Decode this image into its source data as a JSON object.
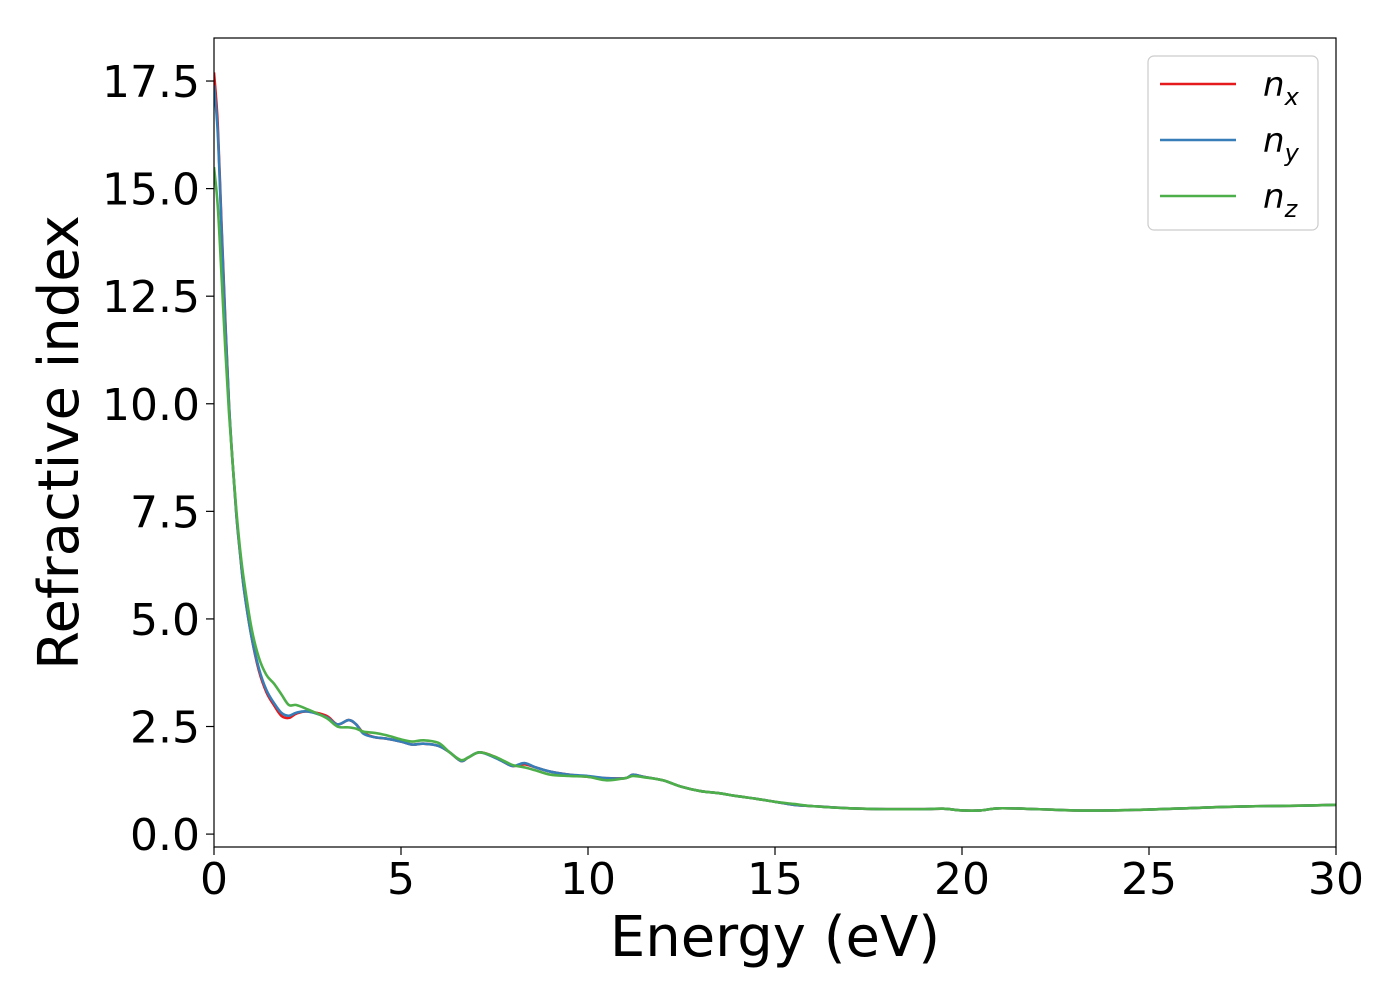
{
  "chart_data": {
    "type": "line",
    "title": "",
    "xlabel": "Energy (eV)",
    "ylabel": "Refractive index",
    "xlim": [
      0,
      30
    ],
    "ylim": [
      -0.3,
      18.5
    ],
    "xticks": [
      0,
      5,
      10,
      15,
      20,
      25,
      30
    ],
    "xtick_labels": [
      "0",
      "5",
      "10",
      "15",
      "20",
      "25",
      "30"
    ],
    "yticks": [
      0.0,
      2.5,
      5.0,
      7.5,
      10.0,
      12.5,
      15.0,
      17.5
    ],
    "ytick_labels": [
      "0.0",
      "2.5",
      "5.0",
      "7.5",
      "10.0",
      "12.5",
      "15.0",
      "17.5"
    ],
    "grid": false,
    "legend_position": "top-right",
    "series": [
      {
        "name": "n_x",
        "legend_base": "n",
        "legend_sub": "x",
        "color": "#e41a1c",
        "x": [
          0.0,
          0.1,
          0.2,
          0.3,
          0.4,
          0.5,
          0.6,
          0.7,
          0.8,
          1.0,
          1.2,
          1.4,
          1.6,
          1.8,
          2.0,
          2.2,
          2.5,
          3.0,
          3.3,
          3.6,
          3.8,
          4.0,
          4.3,
          4.6,
          5.0,
          5.3,
          5.6,
          6.0,
          6.3,
          6.6,
          6.8,
          7.1,
          7.5,
          7.8,
          8.0,
          8.3,
          8.6,
          9.0,
          9.5,
          10.0,
          10.5,
          11.0,
          11.2,
          11.5,
          12.0,
          12.5,
          13.0,
          13.5,
          14.0,
          14.5,
          15.0,
          15.5,
          16.0,
          17.0,
          18.0,
          19.0,
          19.5,
          20.0,
          20.5,
          21.0,
          22.0,
          23.0,
          24.0,
          24.5,
          25.0,
          26.0,
          27.0,
          28.0,
          29.0,
          30.0
        ],
        "y": [
          17.7,
          16.5,
          14.2,
          12.0,
          10.0,
          8.6,
          7.4,
          6.5,
          5.7,
          4.6,
          3.8,
          3.3,
          3.0,
          2.75,
          2.7,
          2.8,
          2.85,
          2.75,
          2.55,
          2.65,
          2.55,
          2.35,
          2.25,
          2.22,
          2.15,
          2.08,
          2.1,
          2.05,
          1.9,
          1.7,
          1.78,
          1.9,
          1.8,
          1.65,
          1.58,
          1.62,
          1.55,
          1.45,
          1.38,
          1.33,
          1.3,
          1.3,
          1.38,
          1.33,
          1.25,
          1.1,
          1.0,
          0.95,
          0.88,
          0.82,
          0.75,
          0.68,
          0.65,
          0.6,
          0.58,
          0.58,
          0.59,
          0.55,
          0.55,
          0.6,
          0.58,
          0.55,
          0.55,
          0.56,
          0.57,
          0.6,
          0.63,
          0.65,
          0.66,
          0.68
        ]
      },
      {
        "name": "n_y",
        "legend_base": "n",
        "legend_sub": "y",
        "color": "#377eb8",
        "x": [
          0.0,
          0.1,
          0.2,
          0.3,
          0.4,
          0.5,
          0.6,
          0.7,
          0.8,
          1.0,
          1.2,
          1.4,
          1.6,
          1.8,
          2.0,
          2.2,
          2.5,
          3.0,
          3.3,
          3.6,
          3.8,
          4.0,
          4.3,
          4.6,
          5.0,
          5.3,
          5.6,
          6.0,
          6.3,
          6.6,
          6.8,
          7.1,
          7.5,
          7.8,
          8.0,
          8.3,
          8.6,
          9.0,
          9.5,
          10.0,
          10.5,
          11.0,
          11.2,
          11.5,
          12.0,
          12.5,
          13.0,
          13.5,
          14.0,
          14.5,
          15.0,
          15.5,
          16.0,
          17.0,
          18.0,
          19.0,
          19.5,
          20.0,
          20.5,
          21.0,
          22.0,
          23.0,
          24.0,
          24.5,
          25.0,
          26.0,
          27.0,
          28.0,
          29.0,
          30.0
        ],
        "y": [
          17.4,
          16.3,
          14.1,
          11.9,
          10.0,
          8.6,
          7.4,
          6.5,
          5.7,
          4.6,
          3.85,
          3.35,
          3.05,
          2.82,
          2.75,
          2.82,
          2.85,
          2.72,
          2.55,
          2.65,
          2.55,
          2.33,
          2.25,
          2.22,
          2.15,
          2.08,
          2.1,
          2.05,
          1.9,
          1.7,
          1.78,
          1.9,
          1.78,
          1.65,
          1.58,
          1.65,
          1.55,
          1.45,
          1.38,
          1.35,
          1.3,
          1.3,
          1.38,
          1.33,
          1.25,
          1.1,
          1.0,
          0.95,
          0.88,
          0.82,
          0.75,
          0.68,
          0.65,
          0.6,
          0.58,
          0.58,
          0.59,
          0.55,
          0.55,
          0.6,
          0.58,
          0.55,
          0.55,
          0.56,
          0.57,
          0.6,
          0.63,
          0.65,
          0.66,
          0.68
        ]
      },
      {
        "name": "n_z",
        "legend_base": "n",
        "legend_sub": "z",
        "color": "#4daf4a",
        "x": [
          0.0,
          0.1,
          0.2,
          0.3,
          0.4,
          0.5,
          0.6,
          0.7,
          0.8,
          1.0,
          1.2,
          1.4,
          1.6,
          1.8,
          2.0,
          2.2,
          2.5,
          3.0,
          3.3,
          3.6,
          3.8,
          4.0,
          4.3,
          4.6,
          5.0,
          5.3,
          5.6,
          6.0,
          6.3,
          6.6,
          6.8,
          7.1,
          7.5,
          7.8,
          8.0,
          8.3,
          8.6,
          9.0,
          9.5,
          10.0,
          10.5,
          11.0,
          11.2,
          11.5,
          12.0,
          12.5,
          13.0,
          13.5,
          14.0,
          14.5,
          15.0,
          15.5,
          16.0,
          17.0,
          18.0,
          19.0,
          19.5,
          20.0,
          20.5,
          21.0,
          22.0,
          23.0,
          24.0,
          24.5,
          25.0,
          26.0,
          27.0,
          28.0,
          29.0,
          30.0
        ],
        "y": [
          15.5,
          14.6,
          13.0,
          11.3,
          9.8,
          8.6,
          7.5,
          6.6,
          5.9,
          4.8,
          4.1,
          3.7,
          3.5,
          3.25,
          3.0,
          3.0,
          2.9,
          2.7,
          2.5,
          2.48,
          2.45,
          2.38,
          2.35,
          2.3,
          2.2,
          2.15,
          2.18,
          2.12,
          1.9,
          1.72,
          1.78,
          1.9,
          1.8,
          1.68,
          1.6,
          1.55,
          1.48,
          1.38,
          1.35,
          1.33,
          1.25,
          1.3,
          1.35,
          1.32,
          1.25,
          1.1,
          1.0,
          0.95,
          0.88,
          0.82,
          0.75,
          0.7,
          0.65,
          0.6,
          0.58,
          0.58,
          0.59,
          0.55,
          0.55,
          0.6,
          0.58,
          0.55,
          0.55,
          0.56,
          0.57,
          0.6,
          0.63,
          0.65,
          0.66,
          0.68
        ]
      }
    ]
  }
}
